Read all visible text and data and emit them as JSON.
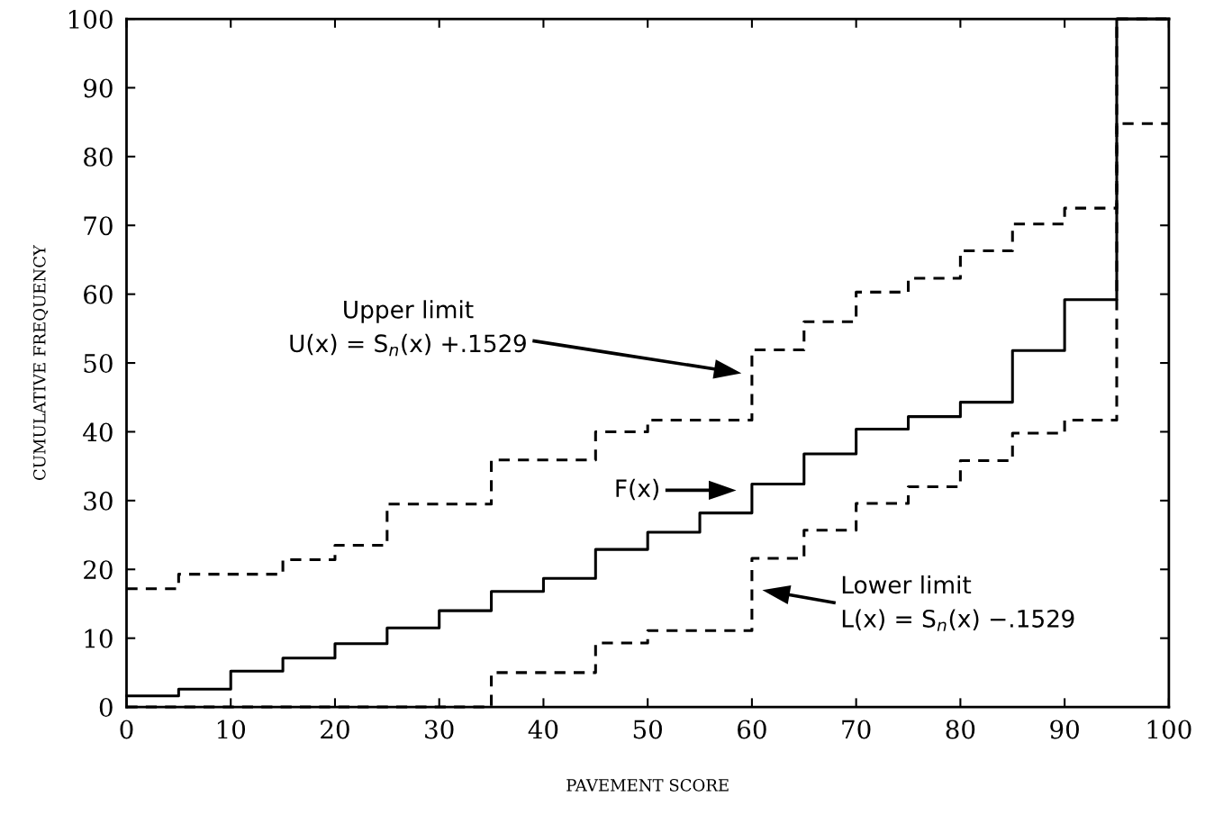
{
  "chart_data": {
    "type": "step",
    "xlabel": "PAVEMENT SCORE",
    "ylabel": "CUMULATIVE FREQUENCY",
    "x": [
      0,
      5,
      10,
      15,
      20,
      25,
      30,
      35,
      40,
      45,
      50,
      55,
      60,
      65,
      70,
      75,
      80,
      85,
      90,
      95,
      100
    ],
    "series": [
      {
        "color": "#000000",
        "line_style": "solid",
        "values": [
          1.6,
          2.6,
          5.2,
          7.1,
          9.2,
          11.5,
          14.0,
          16.8,
          18.7,
          22.9,
          25.4,
          28.2,
          32.4,
          36.8,
          40.4,
          42.2,
          44.3,
          51.8,
          59.2,
          100,
          100
        ]
      },
      {
        "color": "#000000",
        "line_style": "dashed",
        "values": [
          17.2,
          19.3,
          19.3,
          21.4,
          23.5,
          29.5,
          29.5,
          35.9,
          35.9,
          40.0,
          41.7,
          41.7,
          51.9,
          56.0,
          60.3,
          62.3,
          66.3,
          70.2,
          72.5,
          100,
          100
        ]
      },
      {
        "color": "#000000",
        "line_style": "dashed",
        "values": [
          0,
          0,
          0,
          0,
          0,
          0,
          0,
          5.0,
          5.0,
          9.3,
          11.1,
          11.1,
          21.6,
          25.7,
          29.6,
          32.0,
          35.8,
          39.8,
          41.7,
          84.8,
          84.8
        ]
      }
    ],
    "annotations": [
      "Upper limit\nU(x) = S$_{n}$(x) +.1529",
      "F(x)",
      "Lower limit\nL(x) = S$_{n}$(x) −.1529"
    ],
    "xlim": [
      0,
      100
    ],
    "ylim": [
      0,
      100
    ],
    "xticks": [
      0,
      10,
      20,
      30,
      40,
      50,
      60,
      70,
      80,
      90,
      100
    ],
    "yticks": [
      0,
      10,
      20,
      30,
      40,
      50,
      60,
      70,
      80,
      90,
      100
    ],
    "grid": false
  }
}
